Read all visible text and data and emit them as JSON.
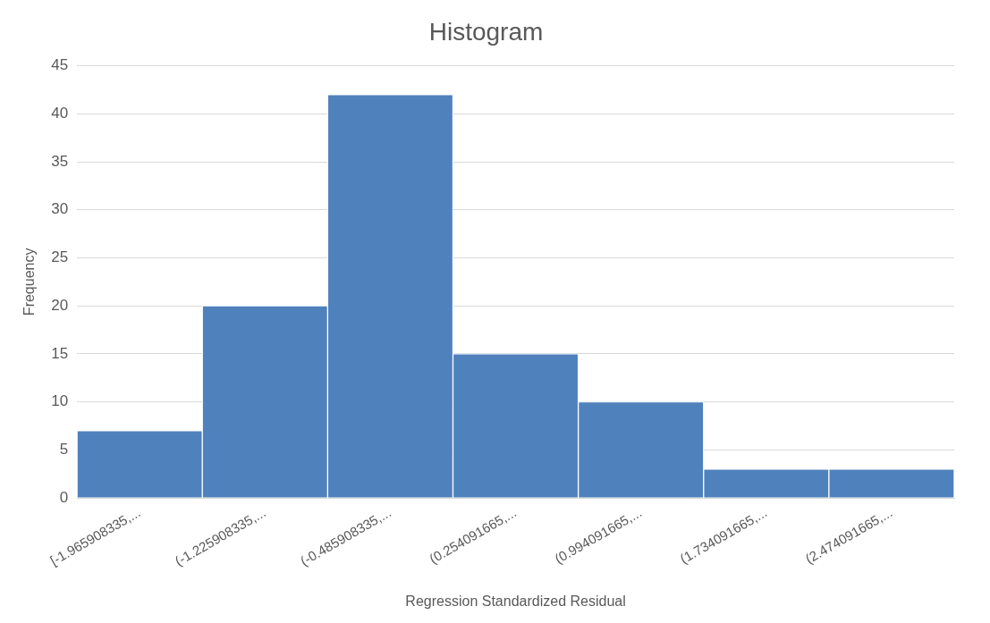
{
  "chart_data": {
    "type": "bar",
    "title": "Histogram",
    "xlabel": "Regression Standardized Residual",
    "ylabel": "Frequency",
    "categories": [
      "[-1.965908335,...",
      "(-1.225908335,...",
      "(-0.485908335,...",
      "(0.254091665,...",
      "(0.994091665,...",
      "(1.734091665,...",
      "(2.474091665,..."
    ],
    "values": [
      7,
      20,
      42,
      15,
      10,
      3,
      3
    ],
    "color": "#4f81bd",
    "ylim": [
      0,
      45
    ],
    "yticks": [
      0,
      5,
      10,
      15,
      20,
      25,
      30,
      35,
      40,
      45
    ],
    "grid": "y",
    "legend": false
  }
}
